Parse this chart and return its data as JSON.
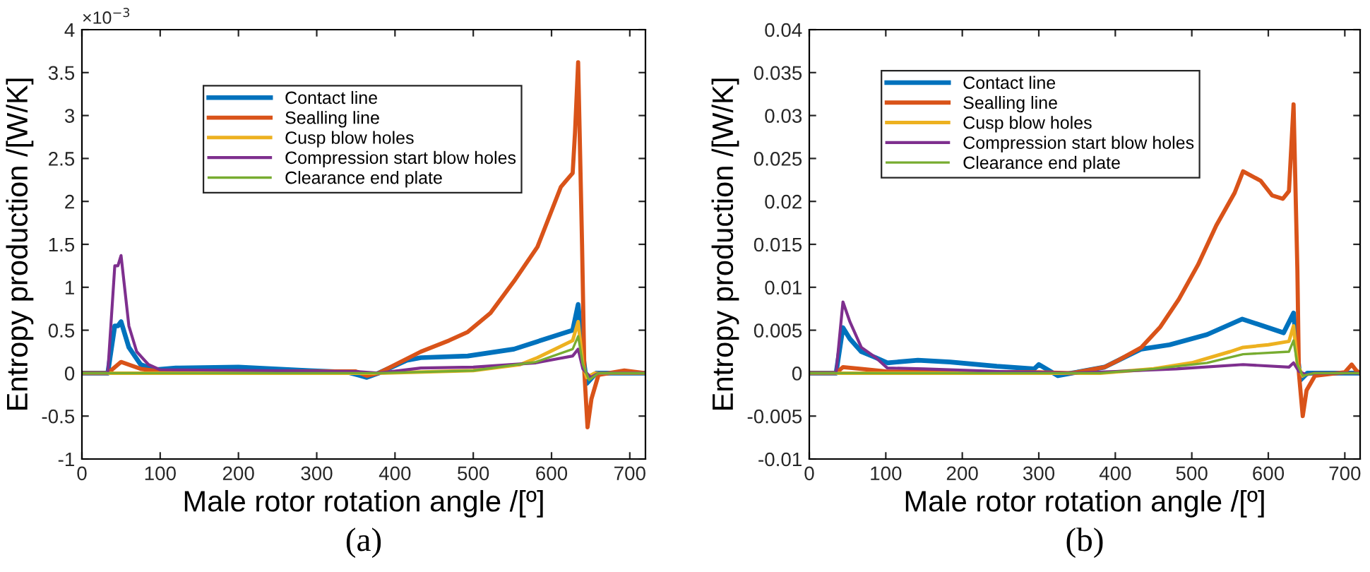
{
  "chart_data": [
    {
      "type": "line",
      "xlabel": "Male rotor rotation angle /[º]",
      "ylabel": "Entropy production /[W/K]",
      "annotations": [
        "×10$^{−3}$",
        "(a)"
      ],
      "xlim": [
        0,
        720
      ],
      "xticks": [
        0,
        100,
        200,
        300,
        400,
        500,
        600,
        700
      ],
      "ylim": [
        -1,
        4
      ],
      "yticks": [
        -1,
        -0.5,
        0,
        0.5,
        1,
        1.5,
        2,
        2.5,
        3,
        3.5,
        4
      ],
      "grid": false,
      "legend": "top left",
      "line_style": "solid",
      "marker": "none",
      "series": [
        {
          "name": "Contact line",
          "color": "#0072bd",
          "x": [
            0,
            33,
            42,
            46,
            50,
            60,
            75,
            93,
            120,
            200,
            290,
            340,
            364,
            379,
            415,
            433,
            493,
            552,
            627,
            634,
            639,
            645,
            657,
            720
          ],
          "values": [
            0,
            0,
            0.55,
            0.55,
            0.6,
            0.3,
            0.1,
            0.04,
            0.06,
            0.07,
            0.03,
            0.01,
            -0.05,
            0,
            0.15,
            0.18,
            0.2,
            0.28,
            0.5,
            0.8,
            0.3,
            -0.12,
            0,
            0
          ]
        },
        {
          "name": "Sealling line",
          "color": "#d95319",
          "x": [
            0,
            33,
            50,
            75,
            100,
            350,
            364,
            379,
            433,
            469,
            493,
            522,
            552,
            582,
            612,
            627,
            630,
            634,
            639,
            642,
            646,
            651,
            660,
            693,
            720
          ],
          "values": [
            0,
            0,
            0.13,
            0.05,
            0.02,
            0.02,
            -0.03,
            0,
            0.25,
            0.38,
            0.48,
            0.7,
            1.07,
            1.47,
            2.17,
            2.33,
            2.8,
            3.62,
            1.5,
            0,
            -0.63,
            -0.3,
            -0.02,
            0.03,
            0
          ]
        },
        {
          "name": "Cusp blow holes",
          "color": "#edb120",
          "x": [
            0,
            380,
            500,
            560,
            582,
            627,
            634,
            640,
            645,
            655,
            720
          ],
          "values": [
            0,
            0,
            0.03,
            0.1,
            0.18,
            0.38,
            0.6,
            0.1,
            -0.05,
            0,
            0
          ]
        },
        {
          "name": "Compression start blow holes",
          "color": "#7e2f8e",
          "x": [
            0,
            33,
            42,
            46,
            50,
            60,
            70,
            85,
            100,
            350,
            379,
            433,
            500,
            580,
            627,
            634,
            640,
            650,
            660,
            720
          ],
          "values": [
            0,
            0,
            1.25,
            1.25,
            1.37,
            0.55,
            0.25,
            0.1,
            0.04,
            0.02,
            0,
            0.06,
            0.07,
            0.12,
            0.2,
            0.28,
            0.05,
            -0.05,
            0,
            0
          ]
        },
        {
          "name": "Clearance end plate",
          "color": "#77ac30",
          "x": [
            0,
            380,
            500,
            580,
            627,
            634,
            640,
            648,
            660,
            720
          ],
          "values": [
            0,
            0,
            0.03,
            0.13,
            0.28,
            0.43,
            0.1,
            -0.08,
            0,
            0
          ]
        }
      ]
    },
    {
      "type": "line",
      "xlabel": "Male rotor rotation angle /[º]",
      "ylabel": "Entropy production /[W/K]",
      "annotations": [
        "(b)"
      ],
      "xlim": [
        0,
        720
      ],
      "xticks": [
        0,
        100,
        200,
        300,
        400,
        500,
        600,
        700
      ],
      "ylim": [
        -0.01,
        0.04
      ],
      "yticks": [
        -0.01,
        -0.005,
        0,
        0.005,
        0.01,
        0.015,
        0.02,
        0.025,
        0.03,
        0.035,
        0.04
      ],
      "grid": false,
      "legend": "top left",
      "line_style": "solid",
      "marker": "none",
      "series": [
        {
          "name": "Contact line",
          "color": "#0072bd",
          "x": [
            0,
            35,
            44,
            53,
            68,
            87,
            102,
            142,
            184,
            245,
            294,
            300,
            325,
            343,
            386,
            404,
            434,
            471,
            520,
            566,
            593,
            620,
            633,
            637,
            642,
            651,
            720
          ],
          "values": [
            0,
            0,
            0.0053,
            0.004,
            0.0025,
            0.0018,
            0.0012,
            0.0015,
            0.0013,
            0.0008,
            0.0005,
            0.001,
            -0.0003,
            0,
            0.0007,
            0.0015,
            0.0028,
            0.0033,
            0.0045,
            0.0063,
            0.0055,
            0.0047,
            0.007,
            0.003,
            -0.0008,
            0,
            0
          ]
        },
        {
          "name": "Sealling line",
          "color": "#d95319",
          "x": [
            0,
            35,
            44,
            68,
            100,
            300,
            343,
            386,
            404,
            434,
            459,
            483,
            508,
            532,
            556,
            567,
            590,
            605,
            619,
            627,
            633,
            638,
            640,
            645,
            650,
            661,
            700,
            709,
            715,
            720
          ],
          "values": [
            0,
            0,
            0.0007,
            0.0005,
            0.0002,
            0.0001,
            0,
            0.0007,
            0.0015,
            0.003,
            0.0054,
            0.0086,
            0.0126,
            0.0172,
            0.021,
            0.0235,
            0.0224,
            0.0207,
            0.0203,
            0.0212,
            0.0313,
            0.012,
            0,
            -0.005,
            -0.002,
            -0.0003,
            0.0001,
            0.001,
            0.0003,
            0
          ]
        },
        {
          "name": "Cusp blow holes",
          "color": "#edb120",
          "x": [
            0,
            380,
            450,
            500,
            550,
            567,
            600,
            627,
            633,
            638,
            645
          ],
          "values": [
            0,
            0,
            0.0005,
            0.0012,
            0.0025,
            0.003,
            0.0033,
            0.0037,
            0.0055,
            0.001,
            -0.0003
          ]
        },
        {
          "name": "Compression start blow holes",
          "color": "#7e2f8e",
          "x": [
            0,
            35,
            44,
            53,
            68,
            87,
            102,
            150,
            250,
            343,
            400,
            480,
            567,
            627,
            633,
            640,
            650,
            660,
            720
          ],
          "values": [
            0,
            0,
            0.0083,
            0.006,
            0.003,
            0.0018,
            0.0006,
            0.0005,
            0.0002,
            0,
            0.0002,
            0.0005,
            0.001,
            0.0007,
            0.0012,
            0.0002,
            -0.0002,
            0,
            0
          ]
        },
        {
          "name": "Clearance end plate",
          "color": "#77ac30",
          "x": [
            0,
            380,
            450,
            520,
            567,
            627,
            633,
            638,
            645,
            660,
            720
          ],
          "values": [
            0,
            0,
            0.0005,
            0.0012,
            0.0022,
            0.0025,
            0.0038,
            0.001,
            -0.0003,
            0,
            0
          ]
        }
      ]
    }
  ]
}
